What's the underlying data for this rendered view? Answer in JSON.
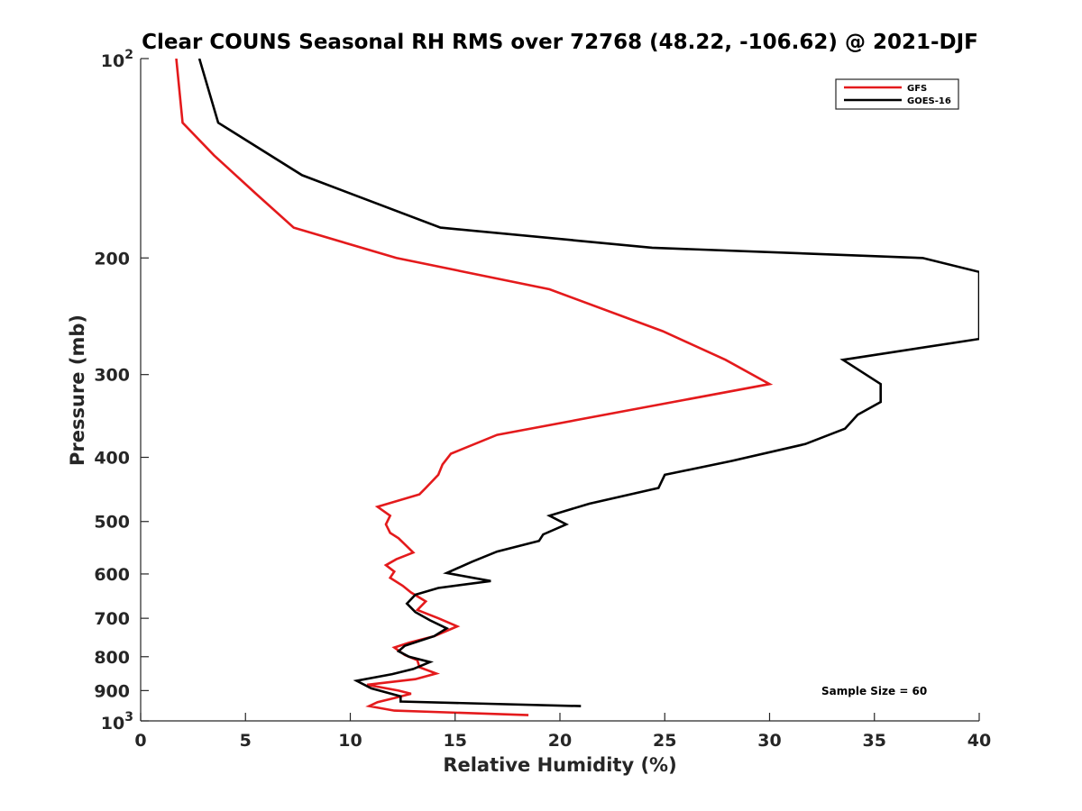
{
  "chart_data": {
    "type": "line",
    "title": "Clear COUNS Seasonal RH RMS over 72768 (48.22, -106.62) @ 2021-DJF",
    "xlabel": "Relative Humidity (%)",
    "ylabel": "Pressure (mb)",
    "xlim": [
      0,
      40
    ],
    "ylim": [
      100,
      1000
    ],
    "y_scale": "log",
    "y_reversed": true,
    "x_ticks": [
      0,
      5,
      10,
      15,
      20,
      25,
      30,
      35,
      40
    ],
    "y_ticks": [
      200,
      300,
      400,
      500,
      600,
      700,
      800,
      900
    ],
    "y_end_labels": [
      {
        "value": 100,
        "base": "10",
        "exp": "2"
      },
      {
        "value": 1000,
        "base": "10",
        "exp": "3"
      }
    ],
    "legend_position": "top-right",
    "annotation": "Sample Size = 60",
    "series": [
      {
        "name": "GFS",
        "color": "#e41a1c",
        "points": [
          [
            1.7,
            100
          ],
          [
            2.0,
            125
          ],
          [
            3.5,
            140
          ],
          [
            5.5,
            160
          ],
          [
            7.3,
            180
          ],
          [
            12.2,
            200
          ],
          [
            19.5,
            223
          ],
          [
            24.9,
            258
          ],
          [
            27.9,
            285
          ],
          [
            30.0,
            310
          ],
          [
            24.3,
            335
          ],
          [
            17.0,
            370
          ],
          [
            14.8,
            395
          ],
          [
            14.4,
            410
          ],
          [
            14.2,
            425
          ],
          [
            13.6,
            445
          ],
          [
            13.3,
            455
          ],
          [
            11.3,
            475
          ],
          [
            11.9,
            490
          ],
          [
            11.7,
            505
          ],
          [
            11.9,
            520
          ],
          [
            12.3,
            530
          ],
          [
            12.7,
            545
          ],
          [
            13.0,
            557
          ],
          [
            12.2,
            570
          ],
          [
            11.7,
            582
          ],
          [
            12.1,
            595
          ],
          [
            11.9,
            608
          ],
          [
            12.5,
            625
          ],
          [
            12.9,
            640
          ],
          [
            13.6,
            660
          ],
          [
            13.2,
            680
          ],
          [
            14.2,
            700
          ],
          [
            15.1,
            720
          ],
          [
            14.0,
            745
          ],
          [
            12.8,
            762
          ],
          [
            12.1,
            775
          ],
          [
            12.6,
            795
          ],
          [
            13.2,
            810
          ],
          [
            13.3,
            830
          ],
          [
            14.1,
            848
          ],
          [
            13.1,
            865
          ],
          [
            10.8,
            882
          ],
          [
            12.3,
            900
          ],
          [
            12.9,
            910
          ],
          [
            12.2,
            922
          ],
          [
            11.3,
            937
          ],
          [
            10.9,
            950
          ],
          [
            12.1,
            965
          ],
          [
            18.5,
            980
          ]
        ]
      },
      {
        "name": "GOES-16",
        "color": "#000000",
        "points": [
          [
            2.8,
            100
          ],
          [
            3.7,
            125
          ],
          [
            7.7,
            150
          ],
          [
            14.3,
            180
          ],
          [
            24.4,
            193
          ],
          [
            37.3,
            200
          ],
          [
            40.0,
            210
          ],
          [
            40.0,
            265
          ],
          [
            33.5,
            285
          ],
          [
            35.3,
            310
          ],
          [
            35.3,
            330
          ],
          [
            34.2,
            345
          ],
          [
            33.6,
            362
          ],
          [
            31.7,
            382
          ],
          [
            28.2,
            405
          ],
          [
            25.0,
            425
          ],
          [
            24.7,
            445
          ],
          [
            21.4,
            470
          ],
          [
            19.5,
            490
          ],
          [
            20.3,
            505
          ],
          [
            19.2,
            523
          ],
          [
            19.0,
            535
          ],
          [
            17.0,
            555
          ],
          [
            15.8,
            575
          ],
          [
            14.6,
            598
          ],
          [
            16.7,
            615
          ],
          [
            14.2,
            630
          ],
          [
            13.1,
            645
          ],
          [
            12.7,
            665
          ],
          [
            13.1,
            685
          ],
          [
            13.8,
            705
          ],
          [
            14.6,
            725
          ],
          [
            14.0,
            745
          ],
          [
            12.6,
            770
          ],
          [
            12.3,
            785
          ],
          [
            12.8,
            800
          ],
          [
            13.8,
            815
          ],
          [
            13.0,
            835
          ],
          [
            12.0,
            850
          ],
          [
            10.3,
            870
          ],
          [
            11.0,
            893
          ],
          [
            12.4,
            918
          ],
          [
            12.4,
            935
          ],
          [
            21.0,
            950
          ]
        ]
      }
    ]
  }
}
